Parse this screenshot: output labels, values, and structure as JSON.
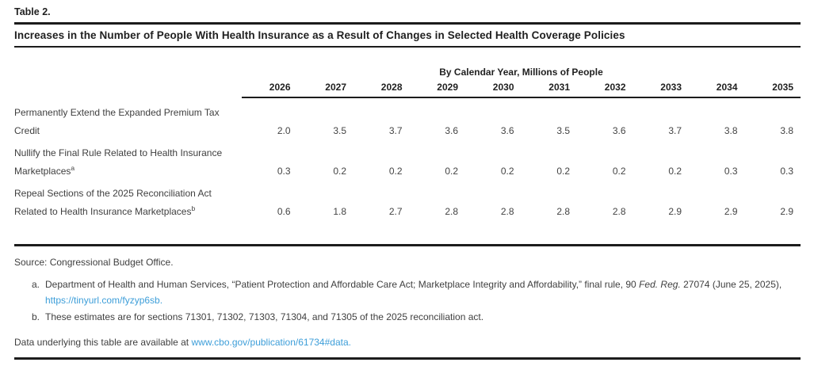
{
  "page": {
    "table_number": "Table 2.",
    "title": "Increases in the Number of People With Health Insurance as a Result of Changes in Selected Health Coverage Policies"
  },
  "table": {
    "spanner": "By Calendar Year, Millions of People",
    "years": [
      "2026",
      "2027",
      "2028",
      "2029",
      "2030",
      "2031",
      "2032",
      "2033",
      "2034",
      "2035"
    ],
    "rows": [
      {
        "label_line1": "Permanently Extend the Expanded Premium Tax",
        "label_line2": "Credit",
        "superscript": "",
        "values": [
          "2.0",
          "3.5",
          "3.7",
          "3.6",
          "3.6",
          "3.5",
          "3.6",
          "3.7",
          "3.8",
          "3.8"
        ]
      },
      {
        "label_line1": "Nullify the Final Rule Related to Health Insurance",
        "label_line2": "Marketplaces",
        "superscript": "a",
        "values": [
          "0.3",
          "0.2",
          "0.2",
          "0.2",
          "0.2",
          "0.2",
          "0.2",
          "0.2",
          "0.3",
          "0.3"
        ]
      },
      {
        "label_line1": "Repeal Sections of the 2025 Reconciliation Act",
        "label_line2": "Related to Health Insurance Marketplaces",
        "superscript": "b",
        "values": [
          "0.6",
          "1.8",
          "2.7",
          "2.8",
          "2.8",
          "2.8",
          "2.8",
          "2.9",
          "2.9",
          "2.9"
        ]
      }
    ]
  },
  "footer": {
    "source": "Source: Congressional Budget Office.",
    "footnote_a": {
      "marker": "a.",
      "text_part1": "Department of Health and Human Services, “Patient Protection and Affordable Care Act; Marketplace Integrity and Affordability,” final rule, 90 ",
      "italic": "Fed. Reg.",
      "text_part2": " 27074 (June 25, 2025), ",
      "link": "https://tinyurl.com/fyzyp6sb."
    },
    "footnote_b": {
      "marker": "b.",
      "text": "These estimates are for sections 71301, 71302, 71303, 71304, and 71305 of the 2025 reconciliation act."
    },
    "data_note": {
      "text": "Data underlying this table are available at ",
      "link": "www.cbo.gov/publication/61734#data."
    }
  },
  "colors": {
    "link": "#3d9ed9",
    "text": "#3f3f3f",
    "rule": "#1c1c1c"
  }
}
